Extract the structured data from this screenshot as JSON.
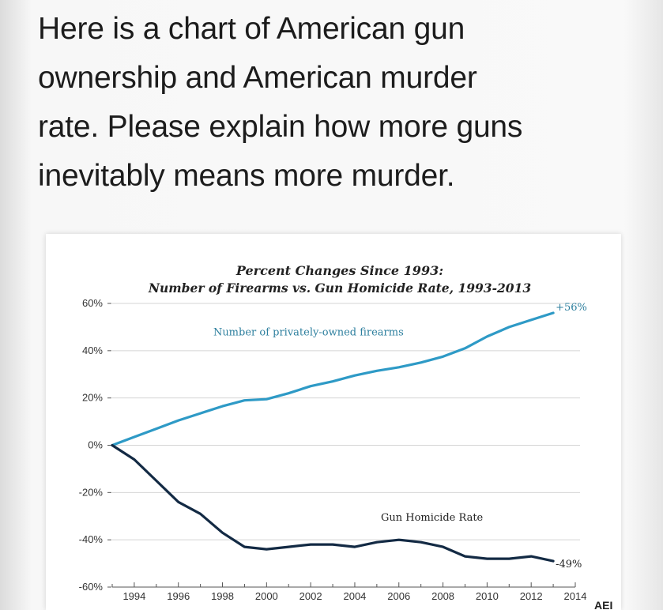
{
  "caption": {
    "lines": [
      "Here is a chart of American gun",
      "ownership and American murder",
      "rate. Please explain how more guns",
      "inevitably means more murder."
    ]
  },
  "colors": {
    "firearms_line": "#2e9ac6",
    "homicide_line": "#132a44",
    "grid": "#d4d4d4",
    "firearms_label": "#2d7f9e",
    "homicide_label": "#222222"
  },
  "corner_mark": "AEI",
  "chart_data": {
    "type": "line",
    "title": "Percent Changes Since 1993:",
    "subtitle": "Number of Firearms vs. Gun Homicide Rate, 1993-2013",
    "xlabel": "",
    "ylabel": "",
    "xlim": [
      1993,
      2014
    ],
    "ylim": [
      -60,
      60
    ],
    "x_ticks": [
      1994,
      1996,
      1998,
      2000,
      2002,
      2004,
      2006,
      2008,
      2010,
      2012,
      2014
    ],
    "y_ticks": [
      60,
      40,
      20,
      0,
      -20,
      -40,
      -60
    ],
    "y_tick_labels": [
      "60%",
      "40%",
      "20%",
      "0%",
      "-20%",
      "-40%",
      "-60%"
    ],
    "grid": true,
    "series": [
      {
        "name": "Number of privately-owned firearms",
        "end_label": "+56%",
        "color": "#2e9ac6",
        "x": [
          1993,
          1994,
          1995,
          1996,
          1997,
          1998,
          1999,
          2000,
          2001,
          2002,
          2003,
          2004,
          2005,
          2006,
          2007,
          2008,
          2009,
          2010,
          2011,
          2012,
          2013
        ],
        "y": [
          0,
          3.5,
          7,
          10.5,
          13.5,
          16.5,
          19,
          19.5,
          22,
          25,
          27,
          29.5,
          31.5,
          33,
          35,
          37.5,
          41,
          46,
          50,
          53,
          56
        ]
      },
      {
        "name": "Gun Homicide Rate",
        "end_label": "-49%",
        "color": "#132a44",
        "x": [
          1993,
          1994,
          1995,
          1996,
          1997,
          1998,
          1999,
          2000,
          2001,
          2002,
          2003,
          2004,
          2005,
          2006,
          2007,
          2008,
          2009,
          2010,
          2011,
          2012,
          2013
        ],
        "y": [
          0,
          -6,
          -15,
          -24,
          -29,
          -37,
          -43,
          -44,
          -43,
          -42,
          -42,
          -43,
          -41,
          -40,
          -41,
          -43,
          -47,
          -48,
          -48,
          -47,
          -49
        ]
      }
    ]
  }
}
